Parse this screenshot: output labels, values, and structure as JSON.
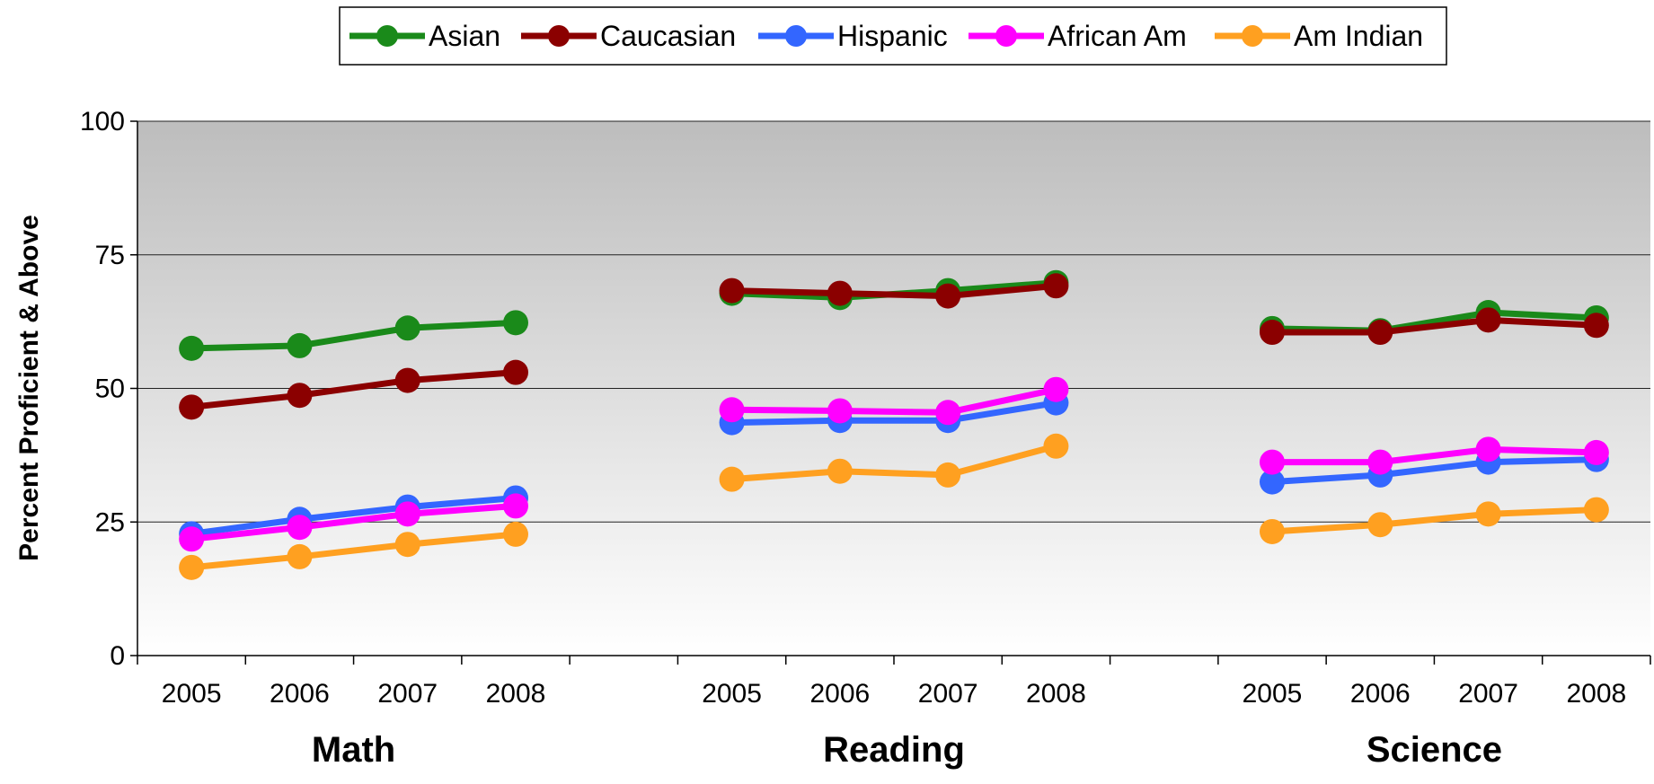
{
  "chart_data": {
    "type": "line",
    "ylabel": "Percent Proficient & Above",
    "ylim": [
      0,
      100
    ],
    "yticks": [
      0,
      25,
      50,
      75,
      100
    ],
    "grid": true,
    "legend_position": "top",
    "groups": [
      {
        "label": "Math",
        "years": [
          "2005",
          "2006",
          "2007",
          "2008"
        ]
      },
      {
        "label": "Reading",
        "years": [
          "2005",
          "2006",
          "2007",
          "2008"
        ]
      },
      {
        "label": "Science",
        "years": [
          "2005",
          "2006",
          "2007",
          "2008"
        ]
      }
    ],
    "series": [
      {
        "name": "Asian",
        "color": "#1a8a1a",
        "values": [
          [
            57.5,
            58,
            61.3,
            62.3
          ],
          [
            67.8,
            67,
            68.3,
            69.8
          ],
          [
            61.2,
            60.8,
            64.2,
            63.2
          ]
        ]
      },
      {
        "name": "Caucasian",
        "color": "#8b0000",
        "values": [
          [
            46.5,
            48.7,
            51.5,
            53
          ],
          [
            68.3,
            67.8,
            67.3,
            69.2
          ],
          [
            60.5,
            60.5,
            62.8,
            61.8
          ]
        ]
      },
      {
        "name": "Hispanic",
        "color": "#3366ff",
        "values": [
          [
            22.8,
            25.5,
            27.8,
            29.5
          ],
          [
            43.6,
            44,
            44,
            47.3
          ],
          [
            32.5,
            33.8,
            36.2,
            36.7
          ]
        ]
      },
      {
        "name": "African Am",
        "color": "#ff00ff",
        "values": [
          [
            21.8,
            24,
            26.5,
            28
          ],
          [
            46,
            45.8,
            45.5,
            49.8
          ],
          [
            36.2,
            36.2,
            38.6,
            38
          ]
        ]
      },
      {
        "name": "Am Indian",
        "color": "#ffa020",
        "values": [
          [
            16.5,
            18.5,
            20.8,
            22.7
          ],
          [
            33,
            34.5,
            33.8,
            39.2
          ],
          [
            23.2,
            24.5,
            26.5,
            27.3
          ]
        ]
      }
    ]
  }
}
